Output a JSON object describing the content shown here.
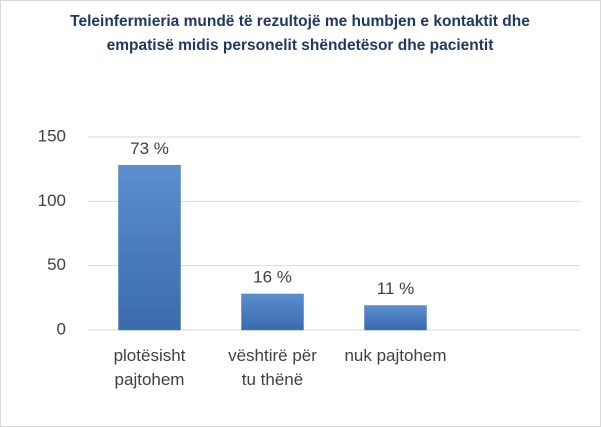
{
  "chart_data": {
    "type": "bar",
    "title": "Teleinfermieria mundë të rezultojë me humbjen e kontaktit dhe empatisë midis personelit shëndetësor dhe pacientit",
    "categories": [
      "plotësisht pajtohem",
      "vështirë për tu thënë",
      "nuk pajtohem",
      null
    ],
    "values": [
      128,
      28,
      19,
      null
    ],
    "annotations": [
      "73 %",
      "16 %",
      "11 %"
    ],
    "color": "#4a7ebb",
    "ylim": [
      0,
      150
    ],
    "yticks": [
      0,
      50,
      100,
      150
    ],
    "grid": true
  }
}
